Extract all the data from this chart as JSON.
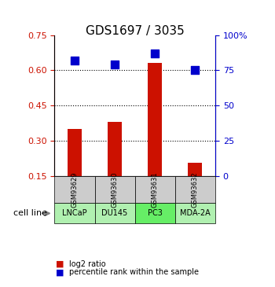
{
  "title": "GDS1697 / 3035",
  "samples": [
    "GSM93629",
    "GSM93630",
    "GSM93631",
    "GSM93632"
  ],
  "cell_lines": [
    "LNCaP",
    "DU145",
    "PC3",
    "MDA-2A"
  ],
  "log2_ratio": [
    0.35,
    0.38,
    0.63,
    0.205
  ],
  "percentile_rank": [
    82,
    79,
    87,
    75
  ],
  "bar_color": "#cc1100",
  "point_color": "#0000cc",
  "left_ylim": [
    0.15,
    0.75
  ],
  "right_ylim": [
    0,
    100
  ],
  "left_yticks": [
    0.15,
    0.3,
    0.45,
    0.6,
    0.75
  ],
  "right_yticks": [
    0,
    25,
    50,
    75,
    100
  ],
  "right_yticklabels": [
    "0",
    "25",
    "50",
    "75",
    "100%"
  ],
  "hlines": [
    0.3,
    0.45,
    0.6
  ],
  "cell_line_colors": [
    "#b0f0b0",
    "#b0f0b0",
    "#66ee66",
    "#b0f0b0"
  ],
  "sample_box_color": "#cccccc",
  "bar_width": 0.35,
  "point_marker": "s",
  "point_size": 50,
  "title_fontsize": 11,
  "tick_fontsize": 8,
  "cell_line_label": "cell line",
  "legend_red_label": "log2 ratio",
  "legend_blue_label": "percentile rank within the sample"
}
